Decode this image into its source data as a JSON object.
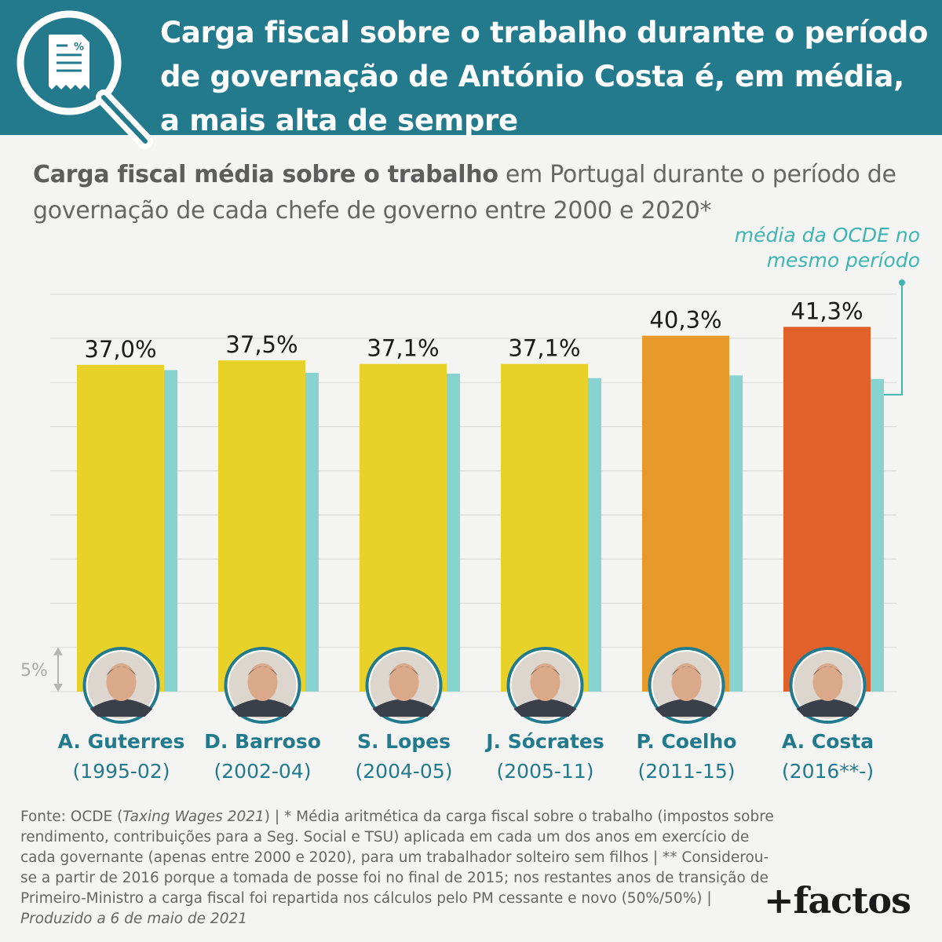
{
  "header": {
    "title": "Carga fiscal sobre o trabalho durante o período de governação de António Costa é, em média, a mais alta de sempre"
  },
  "subtitle": {
    "bold": "Carga fiscal média sobre o trabalho",
    "rest": " em Portugal durante o período de governação de cada chefe de governo entre 2000 e 2020*"
  },
  "oecd_note": [
    "média da OCDE no",
    "mesmo período"
  ],
  "colors": {
    "header": "#227a8c",
    "yellow": "#e8d22a",
    "orange": "#e79a2a",
    "red": "#e2612a",
    "oecd": "#86d3cf",
    "teal_text": "#3eb5b0"
  },
  "icons": {
    "header": "magnifier-document-icon",
    "scale": "double-arrow-icon"
  },
  "chart_data": {
    "type": "bar",
    "categories": [
      "A. Guterres",
      "D. Barroso",
      "S. Lopes",
      "J. Sócrates",
      "P. Coelho",
      "A. Costa"
    ],
    "periods": [
      "(1995-02)",
      "(2002-04)",
      "(2004-05)",
      "(2005-11)",
      "(2011-15)",
      "(2016**-)"
    ],
    "series": [
      {
        "name": "",
        "values": [
          37.0,
          37.5,
          37.1,
          37.1,
          40.3,
          41.3
        ],
        "labels": [
          "37,0%",
          "37,5%",
          "37,1%",
          "37,1%",
          "40,3%",
          "41,3%"
        ],
        "colors": [
          "#e8d22a",
          "#e8d22a",
          "#e8d22a",
          "#e8d22a",
          "#e79a2a",
          "#e2612a"
        ]
      },
      {
        "name": "média da OCDE no mesmo período",
        "values": [
          36.4,
          36.1,
          36.0,
          35.5,
          35.8,
          35.4
        ]
      }
    ],
    "ylim": [
      0,
      45
    ],
    "grid": true,
    "scale_label": "5%",
    "scale_value": 5
  },
  "footer": {
    "source_prefix": "Fonte: OCDE (",
    "source_italic": "Taxing Wages 2021",
    "source_rest": ") | * Média aritmética da carga fiscal sobre o trabalho (impostos sobre rendimento, contribuições para a Seg. Social e TSU) aplicada em cada um dos anos em exercício de cada governante (apenas entre 2000 e 2020), para um trabalhador solteiro sem filhos  | ** Considerou-se a partir de 2016 porque a tomada de posse foi no final de 2015; nos restantes anos de transição de Primeiro-Ministro a carga fiscal foi repartida nos cálculos pelo PM cessante e novo (50%/50%) | ",
    "produced_italic": "Produzido a 6 de maio de 2021"
  },
  "logo": "+factos"
}
